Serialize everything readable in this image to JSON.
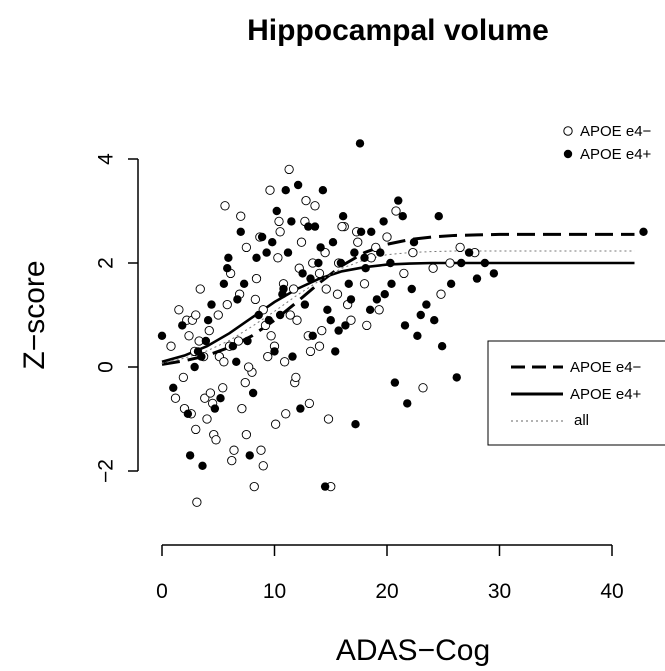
{
  "chart_data": {
    "type": "scatter",
    "title": "Hippocampal volume",
    "xlabel": "ADAS−Cog",
    "ylabel": "Z−score",
    "xlim": [
      0,
      40
    ],
    "ylim": [
      -2.5,
      4
    ],
    "x_ticks": [
      0,
      10,
      20,
      30,
      40
    ],
    "y_ticks": [
      -2,
      0,
      2,
      4
    ],
    "x_tick_labels": [
      "0",
      "10",
      "20",
      "30",
      "40"
    ],
    "y_tick_labels": [
      "−2",
      "0",
      "2",
      "4"
    ],
    "grid": false,
    "point_legend": {
      "placement": "top-right",
      "entries": [
        {
          "label": "APOE e4−",
          "marker": "open-circle"
        },
        {
          "label": "APOE e4+",
          "marker": "filled-circle"
        }
      ]
    },
    "line_legend": {
      "placement": "right",
      "entries": [
        {
          "label": "APOE e4−",
          "style": "dashed"
        },
        {
          "label": "APOE e4+",
          "style": "solid"
        },
        {
          "label": "all",
          "style": "dotted"
        }
      ]
    },
    "series": [
      {
        "name": "APOE e4−",
        "kind": "points",
        "marker": "open-circle",
        "x": [
          0.8,
          1.5,
          1.9,
          2.2,
          2.6,
          2.9,
          3.1,
          3.4,
          3.8,
          4.2,
          4.6,
          5.1,
          5.4,
          5.8,
          6.2,
          6.8,
          7.1,
          7.5,
          8.0,
          8.4,
          8.8,
          9.2,
          9.6,
          10.1,
          10.5,
          10.9,
          11.3,
          11.8,
          12.2,
          12.7,
          13.1,
          13.6,
          14.0,
          14.5,
          15.0,
          15.6,
          16.2,
          16.8,
          17.4,
          18.0,
          18.6,
          19.3,
          20.0,
          20.8,
          21.5,
          22.3,
          23.2,
          24.1,
          24.8,
          25.6,
          26.5,
          27.8,
          2.4,
          3.0,
          3.7,
          4.3,
          5.0,
          5.6,
          6.4,
          7.0,
          7.7,
          8.3,
          9.0,
          9.7,
          10.3,
          11.0,
          11.7,
          12.4,
          13.2,
          14.0,
          14.8,
          15.7,
          16.5,
          17.3,
          18.2,
          19.0,
          2.0,
          3.3,
          4.8,
          6.1,
          7.4,
          8.7,
          10.0,
          11.4,
          12.8,
          14.2,
          1.2,
          2.7,
          4.0,
          5.5,
          6.9,
          8.2,
          9.4,
          10.8,
          12.0,
          13.4,
          3.0,
          4.5,
          6.0,
          7.5,
          9.0,
          10.4,
          11.9,
          13.0,
          14.6,
          16.0
        ],
        "y": [
          0.4,
          1.1,
          -0.2,
          0.9,
          -0.9,
          0.3,
          -2.6,
          1.5,
          -0.6,
          0.7,
          -1.3,
          0.2,
          -0.4,
          1.2,
          -1.8,
          0.5,
          -0.8,
          2.3,
          -0.1,
          1.7,
          -1.6,
          0.8,
          3.4,
          -1.1,
          2.6,
          0.1,
          3.8,
          -0.3,
          1.9,
          2.8,
          -0.7,
          3.1,
          0.4,
          2.2,
          -2.3,
          1.4,
          2.7,
          0.9,
          2.4,
          1.6,
          2.1,
          1.1,
          2.5,
          3.0,
          1.8,
          2.2,
          -0.4,
          1.9,
          1.4,
          2.0,
          2.3,
          2.2,
          0.6,
          -1.2,
          0.2,
          -0.5,
          1.0,
          3.1,
          -1.6,
          2.9,
          0.0,
          1.3,
          -1.9,
          0.6,
          2.1,
          -0.9,
          1.5,
          2.4,
          0.3,
          1.8,
          -1.0,
          2.0,
          1.2,
          2.6,
          0.8,
          2.3,
          -0.8,
          0.5,
          -1.4,
          1.8,
          -0.3,
          2.5,
          0.4,
          1.0,
          3.2,
          0.7,
          -0.6,
          0.9,
          -1.0,
          0.1,
          1.4,
          -2.3,
          0.2,
          1.6,
          0.9,
          2.0,
          1.0,
          -0.7,
          0.4,
          -1.3,
          1.1,
          2.8,
          -0.2,
          0.6,
          1.5,
          2.7
        ]
      },
      {
        "name": "APOE e4+",
        "kind": "points",
        "marker": "filled-circle",
        "x": [
          0.0,
          1.0,
          1.8,
          2.5,
          3.2,
          3.6,
          4.4,
          5.2,
          5.9,
          6.6,
          7.3,
          8.1,
          8.9,
          9.5,
          10.2,
          10.7,
          11.2,
          11.6,
          12.1,
          12.5,
          13.0,
          13.4,
          13.9,
          14.3,
          14.7,
          15.2,
          15.7,
          16.1,
          16.6,
          17.1,
          17.6,
          18.1,
          18.6,
          19.1,
          19.7,
          20.3,
          21.0,
          21.6,
          22.4,
          23.5,
          24.6,
          25.7,
          26.6,
          27.3,
          28.0,
          28.7,
          29.5,
          42.8,
          2.9,
          3.9,
          4.7,
          5.5,
          6.3,
          7.0,
          7.8,
          8.6,
          9.3,
          10.0,
          10.8,
          11.5,
          12.3,
          13.2,
          14.1,
          15.0,
          15.9,
          16.8,
          17.7,
          18.5,
          19.4,
          20.4,
          21.4,
          22.2,
          2.3,
          4.1,
          5.8,
          7.6,
          9.8,
          11.0,
          12.7,
          14.5,
          16.3,
          18.0,
          19.8,
          21.8,
          23.0,
          24.2,
          3.5,
          6.7,
          8.4,
          10.5,
          13.6,
          15.4,
          17.2,
          20.7,
          22.7,
          24.9,
          26.2
        ],
        "y": [
          0.6,
          -0.4,
          0.8,
          -1.7,
          0.3,
          -1.9,
          1.2,
          -0.6,
          2.1,
          0.1,
          1.6,
          -0.5,
          2.5,
          0.9,
          3.0,
          1.4,
          2.2,
          0.2,
          3.5,
          1.8,
          2.7,
          0.6,
          2.0,
          3.4,
          1.1,
          2.4,
          0.7,
          2.9,
          1.6,
          2.2,
          4.3,
          1.9,
          2.6,
          1.3,
          2.8,
          2.0,
          3.2,
          0.8,
          2.4,
          1.2,
          2.9,
          1.6,
          2.0,
          2.2,
          1.7,
          2.0,
          1.8,
          2.6,
          0.0,
          0.5,
          -0.8,
          1.6,
          0.4,
          2.6,
          -1.7,
          1.0,
          2.2,
          0.3,
          1.5,
          2.8,
          -0.8,
          1.7,
          2.3,
          0.9,
          2.0,
          1.3,
          2.6,
          1.1,
          2.2,
          1.6,
          2.9,
          1.5,
          -0.9,
          0.9,
          1.9,
          0.5,
          2.4,
          3.4,
          1.2,
          -2.3,
          0.8,
          2.1,
          1.4,
          -0.7,
          1.0,
          0.9,
          0.2,
          1.3,
          2.1,
          1.0,
          2.7,
          0.3,
          -1.1,
          -0.3,
          0.6,
          0.4,
          -0.2
        ]
      },
      {
        "name": "APOE e4−",
        "kind": "curve",
        "style": "dashed",
        "x": [
          0,
          2,
          4,
          6,
          8,
          10,
          12,
          14,
          16,
          18,
          20,
          22,
          24,
          26,
          28,
          30,
          35,
          40,
          42
        ],
        "y": [
          0.05,
          0.12,
          0.22,
          0.38,
          0.6,
          0.9,
          1.25,
          1.62,
          1.95,
          2.2,
          2.36,
          2.45,
          2.5,
          2.53,
          2.54,
          2.55,
          2.55,
          2.55,
          2.55
        ]
      },
      {
        "name": "APOE e4+",
        "kind": "curve",
        "style": "solid",
        "x": [
          0,
          2,
          4,
          6,
          8,
          10,
          12,
          14,
          16,
          18,
          20,
          22,
          24,
          26,
          28,
          30,
          35,
          40,
          42
        ],
        "y": [
          0.1,
          0.22,
          0.4,
          0.65,
          0.95,
          1.25,
          1.5,
          1.7,
          1.84,
          1.92,
          1.97,
          1.99,
          2.0,
          2.0,
          2.0,
          2.0,
          2.0,
          2.0,
          2.0
        ]
      },
      {
        "name": "all",
        "kind": "curve",
        "style": "dotted",
        "x": [
          0,
          2,
          4,
          6,
          8,
          10,
          12,
          14,
          16,
          18,
          20,
          22,
          24,
          26,
          28,
          30,
          35,
          40,
          42
        ],
        "y": [
          0.07,
          0.17,
          0.31,
          0.51,
          0.78,
          1.07,
          1.38,
          1.66,
          1.9,
          2.06,
          2.16,
          2.2,
          2.22,
          2.23,
          2.23,
          2.23,
          2.23,
          2.23,
          2.23
        ]
      }
    ]
  }
}
